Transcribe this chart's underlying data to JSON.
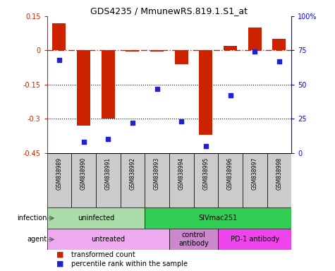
{
  "title": "GDS4235 / MmunewRS.819.1.S1_at",
  "samples": [
    "GSM838989",
    "GSM838990",
    "GSM838991",
    "GSM838992",
    "GSM838993",
    "GSM838994",
    "GSM838995",
    "GSM838996",
    "GSM838997",
    "GSM838998"
  ],
  "bar_values": [
    0.12,
    -0.33,
    -0.3,
    -0.005,
    -0.005,
    -0.06,
    -0.37,
    0.02,
    0.1,
    0.05
  ],
  "scatter_values": [
    68,
    8,
    10,
    22,
    47,
    23,
    5,
    42,
    74,
    67
  ],
  "ylim_left": [
    -0.45,
    0.15
  ],
  "ylim_right": [
    0,
    100
  ],
  "yticks_left": [
    0.15,
    0.0,
    -0.15,
    -0.3,
    -0.45
  ],
  "yticklabels_left": [
    "0.15",
    "0",
    "-0.15",
    "-0.3",
    "-0.45"
  ],
  "yticks_right": [
    100,
    75,
    50,
    25,
    0
  ],
  "yticklabels_right": [
    "100%",
    "75",
    "50",
    "25",
    "0"
  ],
  "dotted_lines": [
    -0.15,
    -0.3
  ],
  "bar_color": "#cc2200",
  "scatter_color": "#2222cc",
  "dashed_line_y": 0,
  "infection_groups": [
    {
      "label": "uninfected",
      "start": 0,
      "end": 4,
      "color": "#aaddaa"
    },
    {
      "label": "SIVmac251",
      "start": 4,
      "end": 10,
      "color": "#33cc55"
    }
  ],
  "agent_groups": [
    {
      "label": "untreated",
      "start": 0,
      "end": 5,
      "color": "#eeaaee"
    },
    {
      "label": "control\nantibody",
      "start": 5,
      "end": 7,
      "color": "#cc88cc"
    },
    {
      "label": "PD-1 antibody",
      "start": 7,
      "end": 10,
      "color": "#ee44ee"
    }
  ],
  "legend_items": [
    {
      "label": "transformed count",
      "color": "#cc2200"
    },
    {
      "label": "percentile rank within the sample",
      "color": "#2222cc"
    }
  ],
  "infection_label": "infection",
  "agent_label": "agent",
  "sample_bg_color": "#cccccc",
  "bar_width": 0.55
}
